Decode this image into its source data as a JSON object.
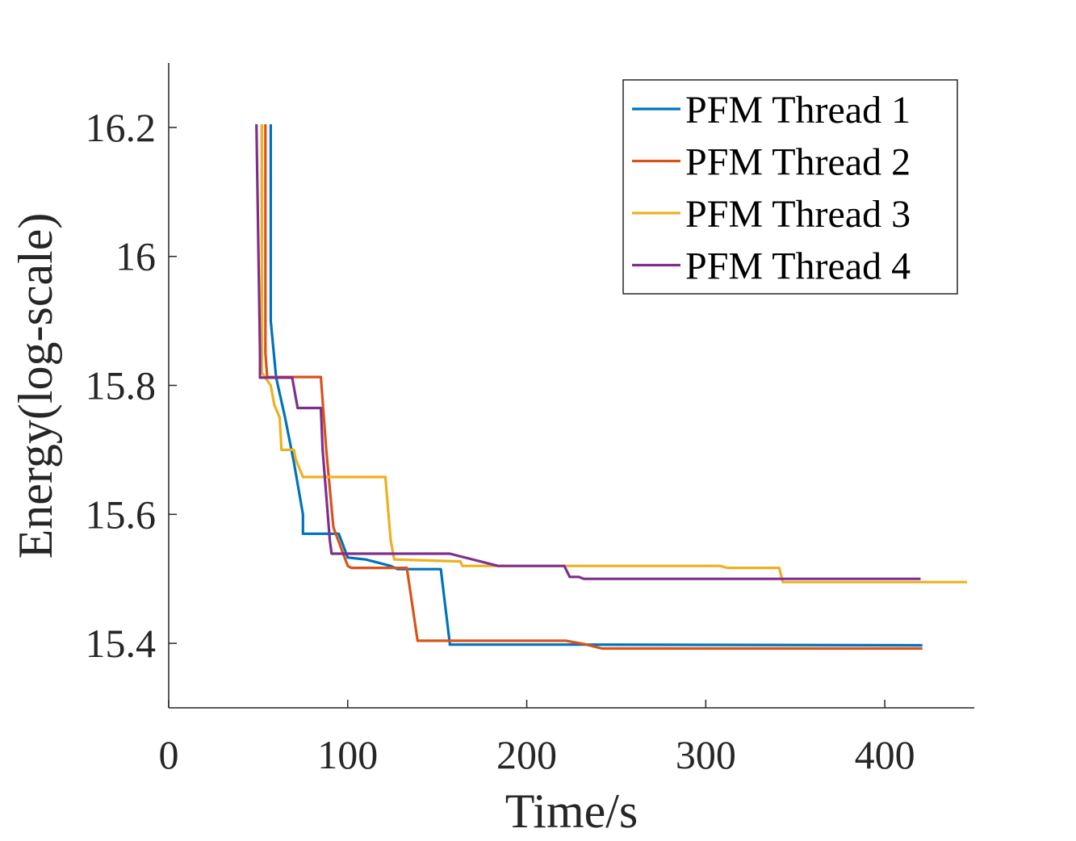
{
  "chart_data": {
    "type": "line",
    "title": "",
    "xlabel": "Time/s",
    "ylabel": "Energy(log-scale)",
    "xlim": [
      0,
      450
    ],
    "ylim": [
      15.3,
      16.3
    ],
    "xticks": [
      "0",
      "100",
      "200",
      "300",
      "400"
    ],
    "yticks": [
      "15.4",
      "15.6",
      "15.8",
      "16",
      "16.2"
    ],
    "grid": false,
    "legend_position": "top-right",
    "series": [
      {
        "name": "PFM Thread 1",
        "color": "#0072BD",
        "x": [
          57,
          57,
          60,
          65,
          70,
          75,
          75,
          95,
          100,
          100,
          110,
          110,
          124,
          128,
          135,
          152,
          157,
          157,
          230,
          421
        ],
        "y": [
          16.205,
          15.9,
          15.812,
          15.75,
          15.68,
          15.6,
          15.57,
          15.57,
          15.533,
          15.533,
          15.53,
          15.53,
          15.52,
          15.515,
          15.515,
          15.515,
          15.4,
          15.398,
          15.398,
          15.397
        ]
      },
      {
        "name": "PFM Thread 2",
        "color": "#D95319",
        "x": [
          54,
          54,
          55,
          85,
          88,
          92,
          96,
          100,
          102,
          133,
          139,
          222,
          232,
          242,
          421
        ],
        "y": [
          16.205,
          15.85,
          15.813,
          15.813,
          15.7,
          15.58,
          15.55,
          15.52,
          15.517,
          15.517,
          15.404,
          15.404,
          15.399,
          15.392,
          15.392
        ]
      },
      {
        "name": "PFM Thread 3",
        "color": "#EDB120",
        "x": [
          52,
          52,
          57,
          59,
          62,
          63,
          70,
          71,
          75,
          121,
          124,
          126,
          163,
          164,
          308,
          312,
          341,
          343,
          446
        ],
        "y": [
          16.205,
          15.82,
          15.8,
          15.77,
          15.75,
          15.7,
          15.7,
          15.685,
          15.658,
          15.658,
          15.56,
          15.53,
          15.527,
          15.52,
          15.52,
          15.517,
          15.517,
          15.495,
          15.495
        ]
      },
      {
        "name": "PFM Thread 4",
        "color": "#7E2F8E",
        "x": [
          49,
          51,
          51,
          69,
          72,
          85,
          86,
          90,
          91,
          157,
          184,
          221,
          224,
          229,
          232,
          420
        ],
        "y": [
          16.205,
          15.85,
          15.812,
          15.812,
          15.765,
          15.765,
          15.7,
          15.56,
          15.539,
          15.539,
          15.52,
          15.52,
          15.503,
          15.503,
          15.5,
          15.5
        ]
      }
    ]
  }
}
